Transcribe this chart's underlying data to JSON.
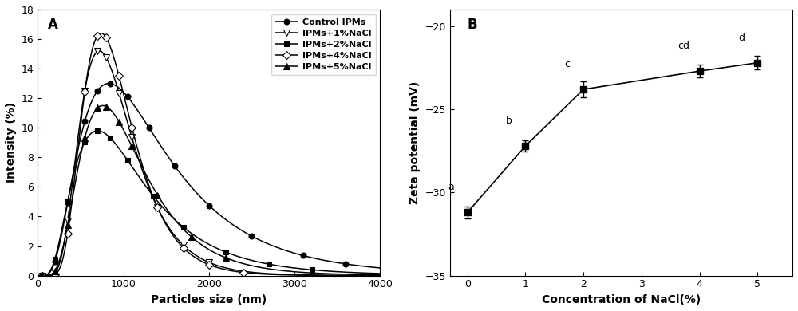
{
  "panel_A": {
    "label": "A",
    "xlabel": "Particles size (nm)",
    "ylabel": "Intensity (%)",
    "xlim": [
      0,
      4000
    ],
    "ylim": [
      0,
      18
    ],
    "xticks": [
      0,
      1000,
      2000,
      3000,
      4000
    ],
    "yticks": [
      0,
      2,
      4,
      6,
      8,
      10,
      12,
      14,
      16,
      18
    ],
    "series": [
      {
        "label": "Control IPMs",
        "marker": "o",
        "fill": true,
        "peak": 830,
        "height": 13.0,
        "sigma": 0.62,
        "ms": 5,
        "pts": [
          50,
          200,
          350,
          550,
          700,
          850,
          1050,
          1300,
          1600,
          2000,
          2500,
          3100,
          3600
        ]
      },
      {
        "label": "IPMs+1%NaCl",
        "marker": "v",
        "fill": false,
        "peak": 720,
        "height": 15.2,
        "sigma": 0.43,
        "ms": 6,
        "pts": [
          50,
          200,
          350,
          550,
          700,
          800,
          950,
          1100,
          1400,
          1700,
          2000
        ]
      },
      {
        "label": "IPMs+2%NaCl",
        "marker": "s",
        "fill": true,
        "peak": 700,
        "height": 9.8,
        "sigma": 0.6,
        "ms": 5,
        "pts": [
          50,
          200,
          350,
          550,
          700,
          850,
          1050,
          1350,
          1700,
          2200,
          2700,
          3200
        ]
      },
      {
        "label": "IPMs+4%NaCl",
        "marker": "D",
        "fill": false,
        "peak": 740,
        "height": 16.4,
        "sigma": 0.4,
        "ms": 5,
        "pts": [
          50,
          200,
          350,
          550,
          700,
          800,
          950,
          1100,
          1400,
          1700,
          2000,
          2400
        ]
      },
      {
        "label": "IPMs+5%NaCl",
        "marker": "^",
        "fill": true,
        "peak": 760,
        "height": 11.5,
        "sigma": 0.5,
        "ms": 6,
        "pts": [
          50,
          200,
          350,
          550,
          700,
          800,
          950,
          1100,
          1400,
          1800,
          2200
        ]
      }
    ]
  },
  "panel_B": {
    "label": "B",
    "xlabel": "Concentration of NaCl(%)",
    "ylabel": "Zeta potential (mV)",
    "xlim": [
      -0.3,
      5.6
    ],
    "ylim": [
      -35,
      -19
    ],
    "xticks": [
      0,
      1,
      2,
      3,
      4,
      5
    ],
    "yticks": [
      -35,
      -30,
      -25,
      -20
    ],
    "x": [
      0,
      1,
      2,
      4,
      5
    ],
    "y": [
      -31.2,
      -27.2,
      -23.8,
      -22.7,
      -22.2
    ],
    "yerr": [
      0.35,
      0.35,
      0.5,
      0.4,
      0.4
    ],
    "letters": [
      "a",
      "b",
      "c",
      "cd",
      "d"
    ],
    "letter_dx": [
      -0.28,
      -0.28,
      -0.28,
      -0.28,
      -0.28
    ],
    "letter_dy": [
      1.2,
      1.2,
      1.2,
      1.2,
      1.2
    ],
    "marker": "s",
    "markersize": 6,
    "color": "black",
    "linestyle": "-"
  }
}
